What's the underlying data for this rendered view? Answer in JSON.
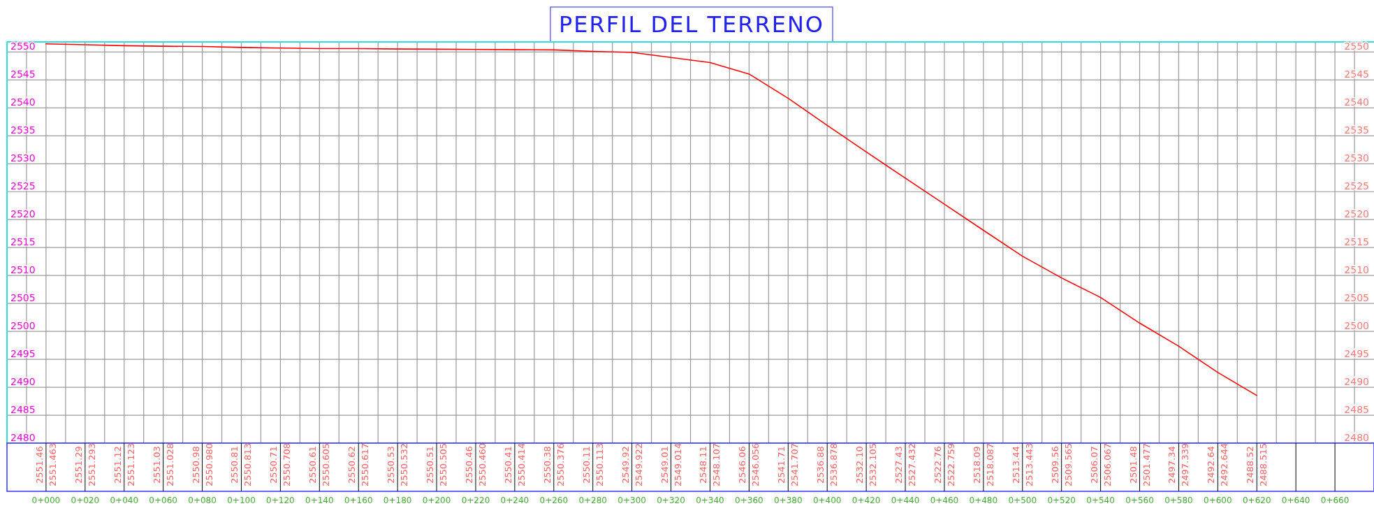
{
  "chart_data": {
    "type": "line",
    "title": "PERFIL DEL TERRENO",
    "categories": [
      "0+000",
      "0+020",
      "0+040",
      "0+060",
      "0+080",
      "0+100",
      "0+120",
      "0+140",
      "0+160",
      "0+180",
      "0+200",
      "0+220",
      "0+240",
      "0+260",
      "0+280",
      "0+300",
      "0+320",
      "0+340",
      "0+360",
      "0+380",
      "0+400",
      "0+420",
      "0+440",
      "0+460",
      "0+480",
      "0+500",
      "0+520",
      "0+540",
      "0+560",
      "0+580",
      "0+600",
      "0+620",
      "0+640",
      "0+660"
    ],
    "ylim": [
      2480,
      2551.8
    ],
    "yticks": [
      2480,
      2485,
      2490,
      2495,
      2500,
      2505,
      2510,
      2515,
      2520,
      2525,
      2530,
      2535,
      2540,
      2545,
      2550
    ],
    "y2lim": [
      2480,
      2551.8
    ],
    "y2ticks": [
      2480,
      2485,
      2490,
      2495,
      2500,
      2505,
      2510,
      2515,
      2520,
      2525,
      2530,
      2535,
      2540,
      2545,
      2550
    ],
    "grid": true,
    "series": [
      {
        "color": "#ff0000",
        "values": [
          2551.463,
          2551.293,
          2551.123,
          2551.028,
          2550.98,
          2550.813,
          2550.708,
          2550.605,
          2550.617,
          2550.532,
          2550.505,
          2550.46,
          2550.414,
          2550.376,
          2550.113,
          2549.922,
          2549.014,
          2548.107,
          2546.056,
          2541.707,
          2536.878,
          2532.105,
          2527.432,
          2522.759,
          2518.087,
          2513.443,
          2509.565,
          2506.067,
          2501.477,
          2497.339,
          2492.644,
          2488.515,
          null,
          null
        ],
        "value_labels": [
          "2551.463",
          "2551.293",
          "2551.123",
          "2551.028",
          "2550.980",
          "2550.813",
          "2550.708",
          "2550.605",
          "2550.617",
          "2550.532",
          "2550.505",
          "2550.460",
          "2550.414",
          "2550.376",
          "2550.113",
          "2549.922",
          "2549.014",
          "2548.107",
          "2546.056",
          "2541.707",
          "2536.878",
          "2532.105",
          "2527.432",
          "2522.759",
          "2518.087",
          "2513.443",
          "2509.565",
          "2506.067",
          "2501.477",
          "2497.339",
          "2492.644",
          "2488.515",
          null,
          null
        ]
      }
    ],
    "annotations": [
      "2551.46",
      "2551.29",
      "2551.12",
      "2551.03",
      "2550.98",
      "2550.81",
      "2550.71",
      "2550.61",
      "2550.62",
      "2550.53",
      "2550.51",
      "2550.46",
      "2550.41",
      "2550.38",
      "2550.11",
      "2549.92",
      "2549.01",
      "2548.11",
      "2546.06",
      "2541.71",
      "2536.88",
      "2532.10",
      "2527.43",
      "2522.76",
      "2518.09",
      "2513.44",
      "2509.56",
      "2506.07",
      "2501.48",
      "2497.34",
      "2492.64",
      "2488.52"
    ]
  }
}
